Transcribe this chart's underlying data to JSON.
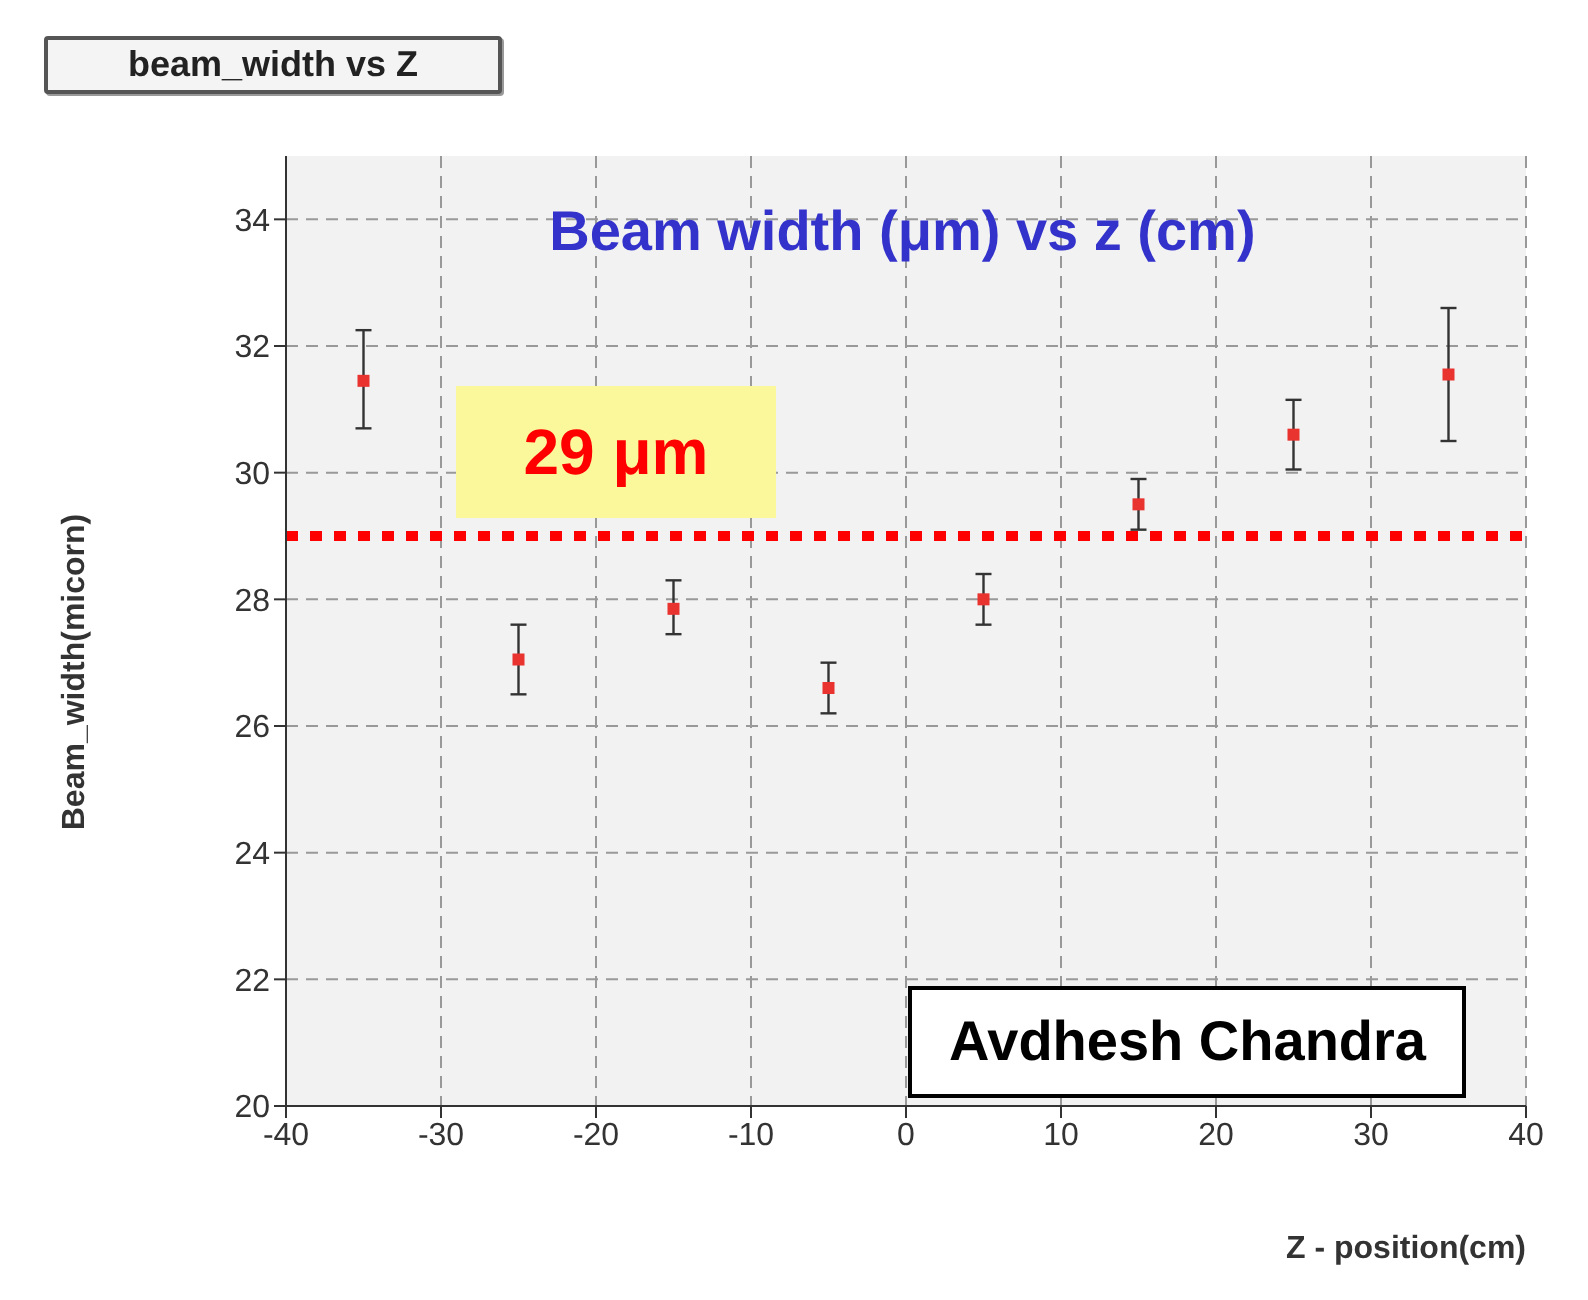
{
  "chart_data": {
    "type": "scatter",
    "title": "beam_width vs Z",
    "subtitle": "Beam width (μm) vs z (cm)",
    "xlabel": "Z - position(cm)",
    "ylabel": "Beam_width(micorn)",
    "annotations": [
      "Avdhesh Chandra"
    ],
    "x": [
      -35,
      -25,
      -15,
      -5,
      5,
      15,
      25,
      35
    ],
    "series": [
      {
        "color": "#e8332f",
        "values": [
          31.45,
          27.05,
          27.85,
          26.6,
          28.0,
          29.5,
          30.6,
          31.55
        ],
        "errors": [
          [
            30.7,
            32.25
          ],
          [
            26.5,
            27.6
          ],
          [
            27.45,
            28.3
          ],
          [
            26.2,
            27.0
          ],
          [
            27.6,
            28.4
          ],
          [
            29.1,
            29.9
          ],
          [
            30.05,
            31.15
          ],
          [
            30.5,
            32.6
          ]
        ]
      }
    ],
    "xlim": [
      -40,
      40
    ],
    "xticks": [
      -40,
      -30,
      -20,
      -10,
      0,
      10,
      20,
      30,
      40
    ],
    "ylim": [
      20,
      35
    ],
    "yticks": [
      20,
      22,
      24,
      26,
      28,
      30,
      32,
      34
    ],
    "ref_lines": [
      {
        "axis": "y",
        "value": 29,
        "label": "29 μm",
        "color": "#ff0000",
        "line_style": "dotted"
      }
    ],
    "grid": true,
    "marker": "square",
    "legend": false
  }
}
